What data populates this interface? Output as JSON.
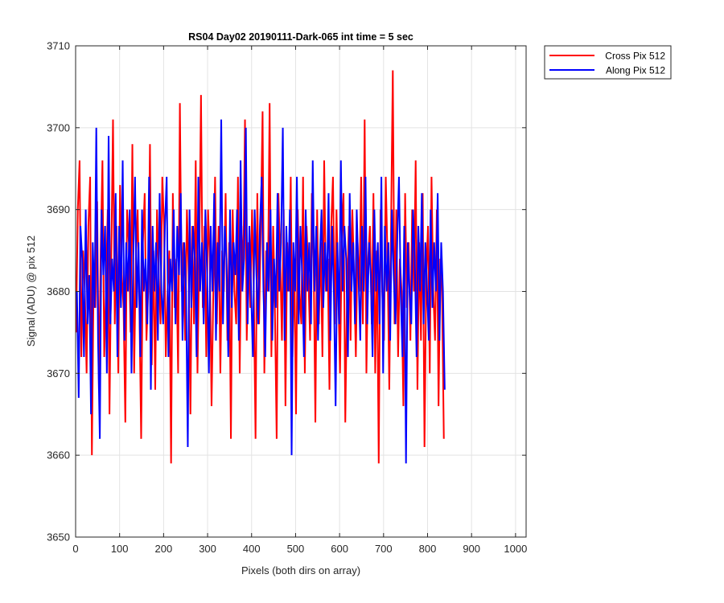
{
  "chart_data": {
    "type": "line",
    "title": "RS04 Day02 20190111-Dark-065 int time = 5 sec",
    "xlabel": "Pixels (both dirs on array)",
    "ylabel": "Signal (ADU) @ pix 512",
    "xlim": [
      0,
      1024
    ],
    "ylim": [
      3650,
      3710
    ],
    "xticks": [
      0,
      100,
      200,
      300,
      400,
      500,
      600,
      700,
      800,
      900,
      1000
    ],
    "yticks": [
      3650,
      3660,
      3670,
      3680,
      3690,
      3700,
      3710
    ],
    "grid": true,
    "legend_position": "outside top-right",
    "series": [
      {
        "name": "Cross Pix 512",
        "color": "#ff0000",
        "x_start": 1,
        "x_step": 4,
        "values": [
          3675,
          3690,
          3696,
          3672,
          3685,
          3680,
          3670,
          3688,
          3694,
          3660,
          3682,
          3678,
          3691,
          3668,
          3685,
          3696,
          3672,
          3680,
          3690,
          3665,
          3684,
          3701,
          3676,
          3688,
          3670,
          3693,
          3682,
          3678,
          3664,
          3690,
          3686,
          3675,
          3698,
          3670,
          3684,
          3690,
          3678,
          3662,
          3686,
          3692,
          3674,
          3680,
          3698,
          3671,
          3685,
          3668,
          3690,
          3682,
          3676,
          3694,
          3688,
          3672,
          3680,
          3685,
          3659,
          3692,
          3678,
          3684,
          3670,
          3703,
          3680,
          3686,
          3674,
          3690,
          3682,
          3665,
          3688,
          3676,
          3696,
          3670,
          3684,
          3704,
          3678,
          3688,
          3672,
          3690,
          3684,
          3666,
          3680,
          3694,
          3676,
          3688,
          3670,
          3685,
          3680,
          3692,
          3674,
          3686,
          3662,
          3690,
          3680,
          3676,
          3694,
          3670,
          3688,
          3682,
          3701,
          3674,
          3686,
          3678,
          3690,
          3680,
          3662,
          3692,
          3676,
          3688,
          3702,
          3670,
          3685,
          3680,
          3703,
          3672,
          3688,
          3678,
          3662,
          3692,
          3684,
          3674,
          3690,
          3666,
          3686,
          3680,
          3694,
          3672,
          3684,
          3665,
          3690,
          3680,
          3676,
          3694,
          3670,
          3688,
          3682,
          3674,
          3692,
          3684,
          3664,
          3690,
          3676,
          3686,
          3672,
          3696,
          3680,
          3684,
          3668,
          3688,
          3694,
          3676,
          3690,
          3680,
          3670,
          3686,
          3692,
          3664,
          3680,
          3688,
          3674,
          3690,
          3682,
          3672,
          3686,
          3680,
          3694,
          3676,
          3701,
          3670,
          3684,
          3688,
          3676,
          3692,
          3670,
          3685,
          3659,
          3690,
          3680,
          3674,
          3694,
          3684,
          3668,
          3688,
          3707,
          3676,
          3690,
          3672,
          3684,
          3680,
          3666,
          3692,
          3678,
          3686,
          3674,
          3690,
          3680,
          3696,
          3668,
          3686,
          3674,
          3692,
          3661,
          3682,
          3688,
          3670,
          3694,
          3680,
          3674,
          3690,
          3666,
          3684,
          3680,
          3662
        ]
      },
      {
        "name": "Along Pix 512",
        "color": "#0000ff",
        "x_start": 3,
        "x_step": 4,
        "values": [
          3680,
          3667,
          3688,
          3684,
          3672,
          3690,
          3676,
          3682,
          3665,
          3686,
          3678,
          3700,
          3674,
          3662,
          3690,
          3682,
          3688,
          3670,
          3699,
          3676,
          3684,
          3680,
          3692,
          3672,
          3688,
          3678,
          3696,
          3674,
          3686,
          3680,
          3690,
          3670,
          3684,
          3694,
          3678,
          3686,
          3672,
          3690,
          3680,
          3684,
          3676,
          3694,
          3668,
          3688,
          3680,
          3686,
          3674,
          3692,
          3680,
          3676,
          3688,
          3694,
          3672,
          3684,
          3680,
          3690,
          3676,
          3688,
          3682,
          3692,
          3674,
          3686,
          3680,
          3661,
          3690,
          3678,
          3688,
          3684,
          3672,
          3694,
          3680,
          3686,
          3676,
          3690,
          3682,
          3670,
          3688,
          3680,
          3692,
          3674,
          3686,
          3680,
          3701,
          3676,
          3688,
          3684,
          3672,
          3690,
          3678,
          3686,
          3682,
          3690,
          3674,
          3696,
          3680,
          3684,
          3700,
          3676,
          3688,
          3680,
          3672,
          3690,
          3682,
          3676,
          3688,
          3694,
          3680,
          3672,
          3686,
          3680,
          3690,
          3674,
          3684,
          3678,
          3692,
          3680,
          3686,
          3700,
          3674,
          3688,
          3680,
          3690,
          3660,
          3686,
          3680,
          3694,
          3676,
          3688,
          3682,
          3672,
          3690,
          3680,
          3686,
          3676,
          3696,
          3680,
          3688,
          3674,
          3684,
          3690,
          3678,
          3686,
          3680,
          3692,
          3674,
          3688,
          3680,
          3666,
          3686,
          3676,
          3696,
          3680,
          3688,
          3684,
          3672,
          3692,
          3680,
          3686,
          3676,
          3690,
          3682,
          3674,
          3688,
          3680,
          3694,
          3676,
          3686,
          3682,
          3672,
          3690,
          3680,
          3686,
          3676,
          3694,
          3670,
          3688,
          3680,
          3686,
          3674,
          3690,
          3682,
          3676,
          3686,
          3694,
          3680,
          3672,
          3688,
          3659,
          3686,
          3680,
          3676,
          3690,
          3684,
          3672,
          3688,
          3680,
          3692,
          3676,
          3686,
          3680,
          3674,
          3690,
          3678,
          3686,
          3680,
          3692,
          3674,
          3686,
          3680,
          3668
        ]
      }
    ]
  }
}
